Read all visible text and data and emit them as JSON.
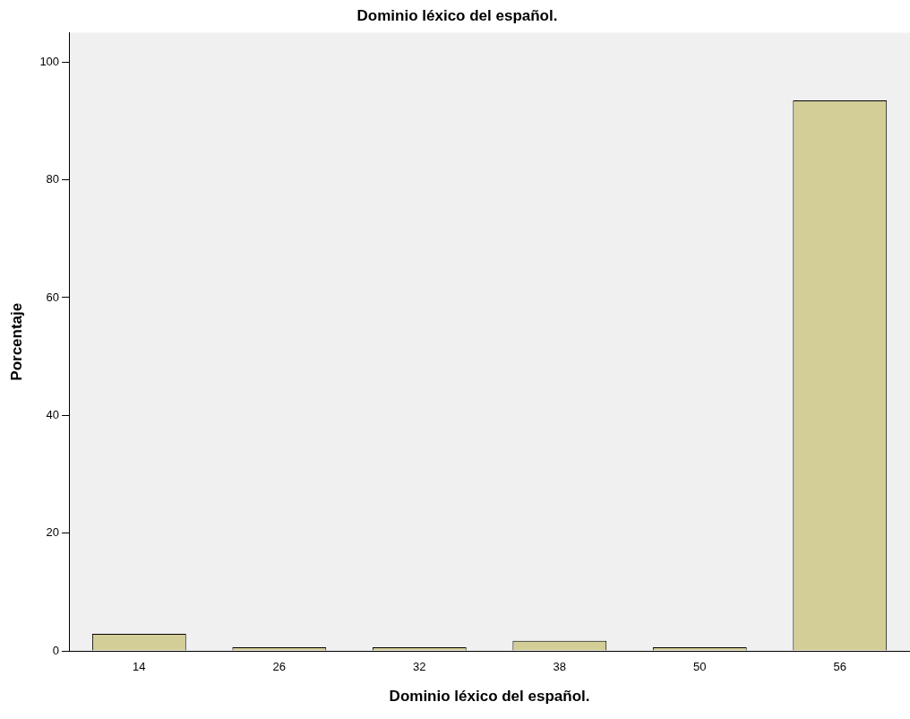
{
  "chart_data": {
    "type": "bar",
    "title": "Dominio léxico del español.",
    "xlabel": "Dominio léxico del español.",
    "ylabel": "Porcentaje",
    "categories": [
      "14",
      "26",
      "32",
      "38",
      "50",
      "56"
    ],
    "values": [
      2.9,
      0.6,
      0.6,
      1.7,
      0.6,
      93.5
    ],
    "color": "#d3ce97",
    "ylim": [
      0,
      105
    ],
    "yticks": [
      0,
      20,
      40,
      60,
      80,
      100
    ],
    "grid": false,
    "legend": false
  }
}
